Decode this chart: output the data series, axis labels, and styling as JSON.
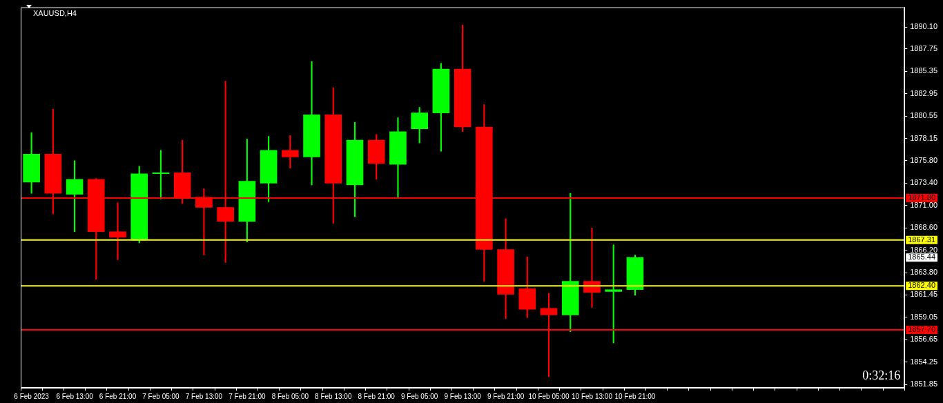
{
  "chart_data": {
    "type": "candlestick",
    "title": "XAUUSD,H4",
    "categories": [
      "6 Feb 2023",
      null,
      "6 Feb 13:00",
      null,
      "6 Feb 21:00",
      null,
      "7 Feb 05:00",
      null,
      "7 Feb 13:00",
      null,
      "7 Feb 21:00",
      null,
      "8 Feb 05:00",
      null,
      "8 Feb 13:00",
      null,
      "8 Feb 21:00",
      null,
      "9 Feb 05:00",
      null,
      "9 Feb 13:00",
      null,
      "9 Feb 21:00",
      null,
      "10 Feb 05:00",
      null,
      "10 Feb 13:00",
      null,
      "10 Feb 21:00",
      null,
      null,
      null,
      null,
      null,
      null,
      null,
      null,
      null,
      null,
      null,
      null
    ],
    "ohlc": [
      [
        1873.5,
        1878.8,
        1872.3,
        1876.5
      ],
      [
        1876.5,
        1881.3,
        1870.1,
        1872.3
      ],
      [
        1872.2,
        1875.8,
        1868.2,
        1873.8
      ],
      [
        1873.8,
        1873.9,
        1863.1,
        1868.2
      ],
      [
        1868.2,
        1871.3,
        1865.2,
        1867.6
      ],
      [
        1867.31,
        1875.2,
        1867.0,
        1874.4
      ],
      [
        1874.4,
        1876.9,
        1871.7,
        1874.5
      ],
      [
        1874.5,
        1878.0,
        1871.2,
        1871.8
      ],
      [
        1871.9,
        1872.8,
        1865.7,
        1870.8
      ],
      [
        1870.8,
        1884.3,
        1864.9,
        1869.3
      ],
      [
        1869.3,
        1878.1,
        1867.1,
        1873.6
      ],
      [
        1873.4,
        1878.4,
        1871.4,
        1876.9
      ],
      [
        1876.9,
        1878.5,
        1875.0,
        1876.2
      ],
      [
        1876.2,
        1886.4,
        1873.2,
        1880.7
      ],
      [
        1880.7,
        1883.6,
        1869.1,
        1873.4
      ],
      [
        1873.2,
        1879.9,
        1869.8,
        1878.0
      ],
      [
        1878.0,
        1878.6,
        1873.8,
        1875.5
      ],
      [
        1875.4,
        1880.4,
        1871.9,
        1878.9
      ],
      [
        1879.2,
        1881.5,
        1877.7,
        1880.9
      ],
      [
        1880.9,
        1886.2,
        1876.8,
        1885.6
      ],
      [
        1885.6,
        1890.3,
        1878.9,
        1879.4
      ],
      [
        1879.4,
        1881.8,
        1862.9,
        1866.3
      ],
      [
        1866.3,
        1869.6,
        1858.9,
        1861.5
      ],
      [
        1862.1,
        1865.5,
        1859.0,
        1859.9
      ],
      [
        1860.0,
        1861.6,
        1852.7,
        1859.3
      ],
      [
        1859.3,
        1872.3,
        1857.5,
        1862.9
      ],
      [
        1862.9,
        1868.6,
        1860.1,
        1861.7
      ],
      [
        1861.8,
        1866.8,
        1856.3,
        1862.0
      ],
      [
        1862.0,
        1865.7,
        1861.4,
        1865.44
      ],
      null,
      null,
      null,
      null,
      null,
      null,
      null,
      null,
      null,
      null,
      null,
      null
    ],
    "colors": [
      "#00ff00",
      "#ff0000",
      "#00ff00",
      "#ff0000",
      "#ff0000",
      "#00ff00",
      "#00ff00",
      "#ff0000",
      "#ff0000",
      "#ff0000",
      "#00ff00",
      "#00ff00",
      "#ff0000",
      "#00ff00",
      "#ff0000",
      "#00ff00",
      "#ff0000",
      "#00ff00",
      "#00ff00",
      "#00ff00",
      "#ff0000",
      "#ff0000",
      "#ff0000",
      "#ff0000",
      "#ff0000",
      "#00ff00",
      "#ff0000",
      "#00ff00",
      "#00ff00",
      null,
      null,
      null,
      null,
      null,
      null,
      null,
      null,
      null,
      null,
      null,
      null
    ],
    "ylim": [
      1851.5,
      1892.2
    ],
    "yticks": [
      {
        "value": 1890.1,
        "label": "1890.10"
      },
      1887.75,
      1885.35,
      1882.95,
      1880.55,
      1878.15,
      {
        "value": 1875.8,
        "label": "1875.80"
      },
      {
        "value": 1873.4,
        "label": "1873.40"
      },
      {
        "value": 1871,
        "label": "1871.00"
      },
      {
        "value": 1868.6,
        "label": "1868.60"
      },
      {
        "value": 1866.2,
        "label": "1866.20"
      },
      {
        "value": 1863.8,
        "label": "1863.80"
      },
      1861.45,
      1859.05,
      1856.65,
      1854.25,
      1851.85
    ],
    "grid": false,
    "ref_lines": [
      {
        "axis": "y",
        "value": 1871.8,
        "label": "1871.80",
        "color": "#ff0000"
      },
      {
        "axis": "y",
        "value": 1867.31,
        "label": "1867.31",
        "color": "#ffff00"
      },
      {
        "axis": "y",
        "value": 1862.4,
        "label": "1862.40",
        "color": "#ffff00"
      },
      {
        "axis": "y",
        "value": 1857.7,
        "label": "1857.70",
        "color": "#ff0000"
      }
    ],
    "annotations": [
      "0:32:16",
      "1865.44"
    ]
  }
}
